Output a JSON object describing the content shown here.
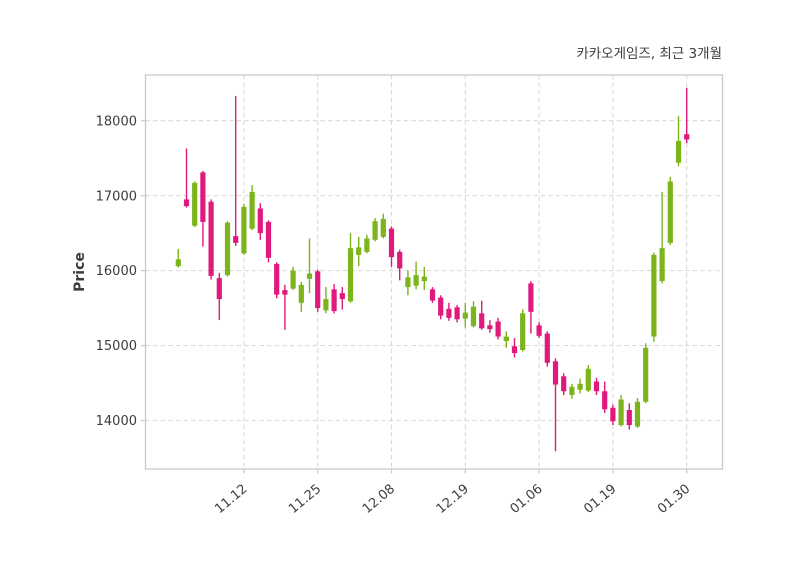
{
  "page": {
    "background": "#ffffff"
  },
  "chart_data": {
    "type": "candlestick",
    "title": "카카오게임즈, 최근 3개월",
    "ylabel": "Price",
    "xlabel": "",
    "grid": "dashed, both axes",
    "legend": "none",
    "ylim": [
      13353,
      18610
    ],
    "yticks": [
      14000,
      15000,
      16000,
      17000,
      18000
    ],
    "xticks": [
      {
        "index": 8,
        "label": "11.12"
      },
      {
        "index": 17,
        "label": "11.25"
      },
      {
        "index": 26,
        "label": "12.08"
      },
      {
        "index": 35,
        "label": "12.19"
      },
      {
        "index": 44,
        "label": "01.06"
      },
      {
        "index": 53,
        "label": "01.19"
      },
      {
        "index": 62,
        "label": "01.30"
      }
    ],
    "colors": {
      "up": "#7cb41c",
      "down": "#e0197d",
      "grid": "#d9d9d9",
      "spine": "#c9c9c9",
      "text": "#3d3d3d",
      "background": "#ffffff"
    },
    "candle_columns": [
      "open",
      "high",
      "low",
      "close"
    ],
    "candles": [
      [
        16060,
        16290,
        16040,
        16150
      ],
      [
        16950,
        17630,
        16840,
        16860
      ],
      [
        16600,
        17190,
        16580,
        17170
      ],
      [
        17310,
        17330,
        16320,
        16650
      ],
      [
        16920,
        16950,
        15880,
        15930
      ],
      [
        15900,
        15970,
        15340,
        15620
      ],
      [
        15940,
        16660,
        15920,
        16640
      ],
      [
        16460,
        18330,
        16330,
        16370
      ],
      [
        16230,
        16890,
        16210,
        16850
      ],
      [
        16560,
        17140,
        16540,
        17050
      ],
      [
        16830,
        16900,
        16410,
        16500
      ],
      [
        16650,
        16670,
        16110,
        16170
      ],
      [
        16090,
        16110,
        15630,
        15680
      ],
      [
        15740,
        15810,
        15210,
        15680
      ],
      [
        15760,
        16050,
        15740,
        16000
      ],
      [
        15570,
        15850,
        15450,
        15810
      ],
      [
        15890,
        16430,
        15700,
        15960
      ],
      [
        15990,
        16010,
        15450,
        15500
      ],
      [
        15470,
        15780,
        15430,
        15620
      ],
      [
        15750,
        15820,
        15430,
        15460
      ],
      [
        15700,
        15780,
        15480,
        15620
      ],
      [
        15590,
        16500,
        15570,
        16300
      ],
      [
        16210,
        16450,
        16060,
        16310
      ],
      [
        16250,
        16480,
        16230,
        16430
      ],
      [
        16410,
        16700,
        16390,
        16660
      ],
      [
        16450,
        16760,
        16430,
        16690
      ],
      [
        16560,
        16590,
        16050,
        16180
      ],
      [
        16250,
        16280,
        15870,
        16030
      ],
      [
        15780,
        16000,
        15670,
        15910
      ],
      [
        15800,
        16120,
        15750,
        15940
      ],
      [
        15860,
        16050,
        15740,
        15920
      ],
      [
        15750,
        15780,
        15570,
        15600
      ],
      [
        15640,
        15670,
        15350,
        15400
      ],
      [
        15490,
        15570,
        15330,
        15370
      ],
      [
        15510,
        15540,
        15310,
        15350
      ],
      [
        15360,
        15570,
        15240,
        15440
      ],
      [
        15260,
        15590,
        15240,
        15520
      ],
      [
        15430,
        15600,
        15210,
        15230
      ],
      [
        15270,
        15340,
        15170,
        15220
      ],
      [
        15320,
        15370,
        15080,
        15120
      ],
      [
        15060,
        15190,
        14970,
        15120
      ],
      [
        14990,
        15100,
        14840,
        14900
      ],
      [
        14940,
        15480,
        14920,
        15430
      ],
      [
        15830,
        15860,
        15160,
        15450
      ],
      [
        15270,
        15310,
        15100,
        15130
      ],
      [
        15160,
        15190,
        14720,
        14770
      ],
      [
        14790,
        14830,
        13590,
        14480
      ],
      [
        14590,
        14630,
        14340,
        14390
      ],
      [
        14340,
        14490,
        14290,
        14450
      ],
      [
        14410,
        14560,
        14360,
        14490
      ],
      [
        14400,
        14740,
        14380,
        14690
      ],
      [
        14520,
        14570,
        14340,
        14390
      ],
      [
        14390,
        14520,
        14100,
        14150
      ],
      [
        14170,
        14210,
        13940,
        13990
      ],
      [
        13940,
        14340,
        13920,
        14280
      ],
      [
        14140,
        14230,
        13880,
        13940
      ],
      [
        13920,
        14300,
        13900,
        14250
      ],
      [
        14250,
        15030,
        14230,
        14970
      ],
      [
        15120,
        16240,
        15050,
        16210
      ],
      [
        15860,
        17050,
        15830,
        16300
      ],
      [
        16370,
        17250,
        16340,
        17190
      ],
      [
        17440,
        18060,
        17390,
        17730
      ],
      [
        17820,
        18440,
        17700,
        17750
      ]
    ]
  }
}
